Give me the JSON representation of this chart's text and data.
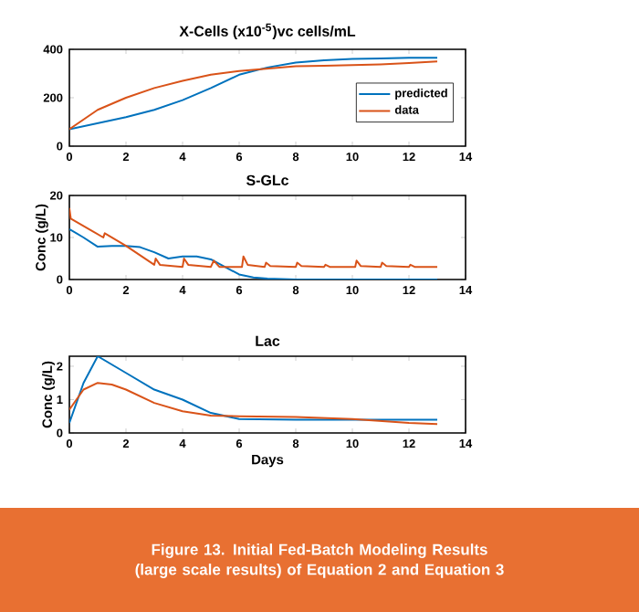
{
  "chart_data": [
    {
      "type": "line",
      "title": "X-Cells (x10$^{-5}$)vc cells/mL",
      "xlim": [
        0,
        14
      ],
      "xticks": [
        0,
        2,
        4,
        6,
        8,
        10,
        12,
        14
      ],
      "ylim": [
        0,
        400
      ],
      "yticks": [
        0,
        200,
        400
      ],
      "legend": "right",
      "marker": "none",
      "series": [
        {
          "name": "predicted",
          "color": "#0072bd",
          "x": [
            0,
            1,
            2,
            3,
            4,
            5,
            6,
            7,
            8,
            9,
            10,
            11,
            12,
            13
          ],
          "values": [
            70,
            95,
            120,
            150,
            190,
            240,
            295,
            325,
            345,
            355,
            360,
            362,
            365,
            365
          ]
        },
        {
          "name": "data",
          "color": "#d95319",
          "x": [
            0,
            1,
            2,
            3,
            4,
            5,
            6,
            7,
            8,
            9,
            10,
            11,
            12,
            13
          ],
          "values": [
            70,
            150,
            200,
            240,
            270,
            295,
            310,
            320,
            330,
            332,
            335,
            338,
            343,
            350
          ]
        }
      ]
    },
    {
      "type": "line",
      "title": "S-GLc",
      "ylabel": "Conc (g/L)",
      "xlim": [
        0,
        14
      ],
      "xticks": [
        0,
        2,
        4,
        6,
        8,
        10,
        12,
        14
      ],
      "ylim": [
        0,
        20
      ],
      "yticks": [
        0,
        10,
        20
      ],
      "marker": "none",
      "series": [
        {
          "color": "#0072bd",
          "x": [
            0,
            0.5,
            1,
            1.5,
            2,
            2.5,
            3,
            3.5,
            4,
            4.5,
            5,
            5.5,
            6,
            6.5,
            7,
            8,
            13
          ],
          "values": [
            12,
            10,
            7.8,
            8,
            8,
            7.7,
            6.5,
            5,
            5.5,
            5.5,
            4.8,
            3,
            1.2,
            0.5,
            0.2,
            0,
            0
          ]
        },
        {
          "color": "#d95319",
          "x": [
            0,
            0.05,
            1.2,
            1.25,
            2,
            3,
            3.05,
            3.2,
            4,
            4.05,
            4.2,
            5,
            5.1,
            5.3,
            6.1,
            6.15,
            6.3,
            6.9,
            6.95,
            7.1,
            8,
            8.05,
            8.2,
            9,
            9.05,
            9.2,
            10.1,
            10.15,
            10.3,
            11,
            11.05,
            11.2,
            12,
            12.05,
            12.2,
            13
          ],
          "values": [
            17,
            14.5,
            10,
            11,
            8,
            3.5,
            5,
            3.5,
            3,
            5,
            3.5,
            3,
            4.5,
            3,
            3,
            5.5,
            3.5,
            3,
            4,
            3.2,
            3,
            4,
            3.2,
            3,
            3.5,
            3,
            3,
            4.5,
            3.2,
            3,
            4,
            3.2,
            3,
            3.5,
            3,
            3
          ]
        }
      ]
    },
    {
      "type": "line",
      "title": "Lac",
      "xlabel": "Days",
      "ylabel": "Conc (g/L)",
      "xlim": [
        0,
        14
      ],
      "xticks": [
        0,
        2,
        4,
        6,
        8,
        10,
        12,
        14
      ],
      "ylim": [
        0,
        2.3
      ],
      "yticks": [
        0,
        1,
        2
      ],
      "marker": "none",
      "series": [
        {
          "color": "#0072bd",
          "x": [
            0,
            0.5,
            1,
            2,
            3,
            4,
            5,
            6,
            8,
            10,
            13
          ],
          "values": [
            0.3,
            1.5,
            2.3,
            1.8,
            1.3,
            1.0,
            0.6,
            0.42,
            0.4,
            0.4,
            0.4
          ]
        },
        {
          "color": "#d95319",
          "x": [
            0,
            0.5,
            1,
            1.5,
            2,
            3,
            4,
            5,
            6,
            8,
            10,
            12,
            13
          ],
          "values": [
            0.7,
            1.3,
            1.5,
            1.45,
            1.3,
            0.9,
            0.65,
            0.52,
            0.5,
            0.48,
            0.42,
            0.3,
            0.27
          ]
        }
      ],
      "annotations": [
        "**Figure 13. Initial Fed-Batch Modeling Results (large scale results) of Equation 2 and Equation 3**"
      ]
    }
  ]
}
